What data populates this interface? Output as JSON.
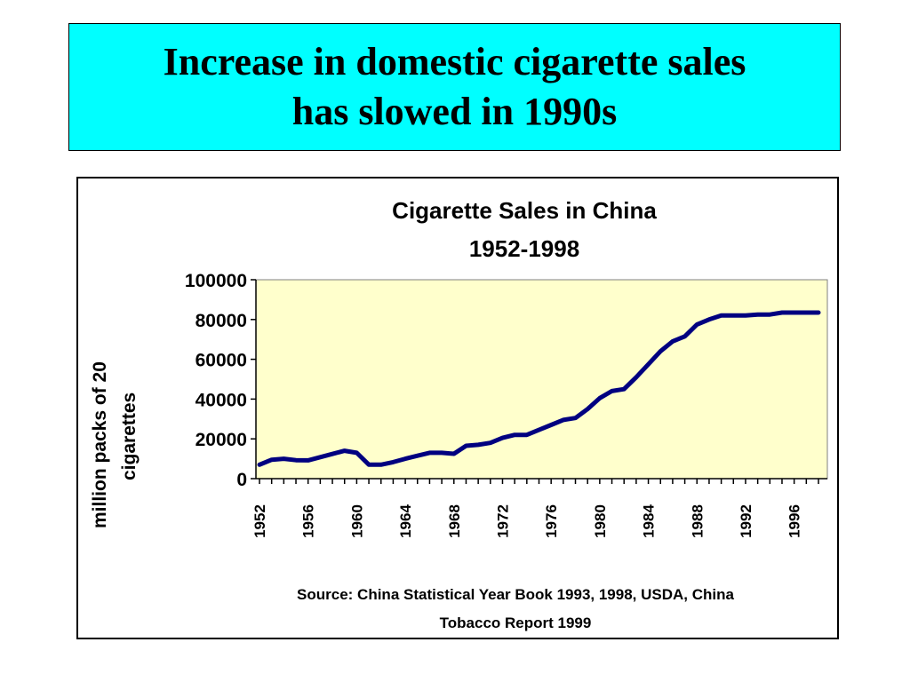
{
  "slide": {
    "title_line1": "Increase in domestic cigarette sales",
    "title_line2": "has slowed in 1990s",
    "title_bg": "#00ffff"
  },
  "chart_data": {
    "type": "line",
    "title_line1": "Cigarette Sales in China",
    "title_line2": "1952-1998",
    "ylabel_line1": "million packs of 20",
    "ylabel_line2": "cigarettes",
    "ylim": [
      0,
      100000
    ],
    "yticks": [
      "0",
      "20000",
      "40000",
      "60000",
      "80000",
      "100000"
    ],
    "xlim": [
      1952,
      1998
    ],
    "xtick_labels": [
      "1952",
      "1956",
      "1960",
      "1964",
      "1968",
      "1972",
      "1976",
      "1980",
      "1984",
      "1988",
      "1992",
      "1996"
    ],
    "grid": false,
    "plot_bg": "#ffffcc",
    "line_color": "#000080",
    "series": [
      {
        "x": [
          1952,
          1953,
          1954,
          1955,
          1956,
          1957,
          1958,
          1959,
          1960,
          1961,
          1962,
          1963,
          1964,
          1965,
          1966,
          1967,
          1968,
          1969,
          1970,
          1971,
          1972,
          1973,
          1974,
          1975,
          1976,
          1977,
          1978,
          1979,
          1980,
          1981,
          1982,
          1983,
          1984,
          1985,
          1986,
          1987,
          1988,
          1989,
          1990,
          1991,
          1992,
          1993,
          1994,
          1995,
          1996,
          1997,
          1998
        ],
        "values": [
          7000,
          9500,
          10000,
          9300,
          9200,
          10800,
          12400,
          14000,
          13000,
          7000,
          7000,
          8300,
          10000,
          11500,
          13000,
          13000,
          12500,
          16500,
          17000,
          18000,
          20500,
          22000,
          22000,
          24500,
          27000,
          29500,
          30500,
          35000,
          40500,
          44000,
          45000,
          51000,
          57500,
          64000,
          69000,
          71500,
          77500,
          80000,
          82000,
          82000,
          82000,
          82500,
          82500,
          83500,
          83500,
          83500,
          83500
        ]
      }
    ]
  },
  "source": {
    "line1": "Source: China Statistical Year Book 1993, 1998, USDA, China",
    "line2": "Tobacco Report 1999"
  }
}
